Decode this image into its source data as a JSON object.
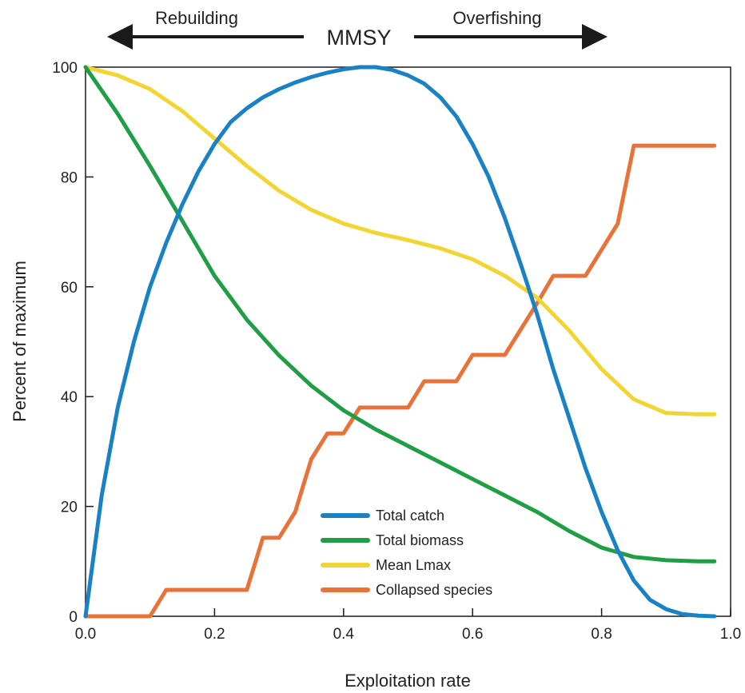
{
  "chart_data": {
    "type": "line",
    "title": "MMSY",
    "xlabel": "Exploitation rate",
    "ylabel": "Percent of maximum",
    "xlim": [
      0.0,
      1.0
    ],
    "ylim": [
      0,
      100
    ],
    "x_ticks": [
      "0.0",
      "0.2",
      "0.4",
      "0.6",
      "0.8",
      "1.0"
    ],
    "y_ticks": [
      "0",
      "20",
      "40",
      "60",
      "80",
      "100"
    ],
    "grid": false,
    "legend_position": "bottom-center",
    "annotations": {
      "left_arrow_label": "Rebuilding",
      "right_arrow_label": "Overfishing"
    },
    "series": [
      {
        "name": "Total catch",
        "color": "#1a82c4",
        "points": [
          [
            0.0,
            0
          ],
          [
            0.025,
            22
          ],
          [
            0.05,
            38
          ],
          [
            0.075,
            50
          ],
          [
            0.1,
            60
          ],
          [
            0.125,
            68
          ],
          [
            0.15,
            75
          ],
          [
            0.175,
            81
          ],
          [
            0.2,
            86
          ],
          [
            0.225,
            90
          ],
          [
            0.25,
            92.5
          ],
          [
            0.275,
            94.5
          ],
          [
            0.3,
            96
          ],
          [
            0.325,
            97.2
          ],
          [
            0.35,
            98.2
          ],
          [
            0.375,
            99
          ],
          [
            0.4,
            99.6
          ],
          [
            0.425,
            100
          ],
          [
            0.45,
            100
          ],
          [
            0.475,
            99.5
          ],
          [
            0.5,
            98.5
          ],
          [
            0.525,
            97
          ],
          [
            0.55,
            94.5
          ],
          [
            0.575,
            91
          ],
          [
            0.6,
            86
          ],
          [
            0.625,
            80
          ],
          [
            0.65,
            72.5
          ],
          [
            0.675,
            64
          ],
          [
            0.7,
            55
          ],
          [
            0.725,
            45
          ],
          [
            0.75,
            36
          ],
          [
            0.775,
            27
          ],
          [
            0.8,
            19
          ],
          [
            0.825,
            12
          ],
          [
            0.85,
            6.5
          ],
          [
            0.875,
            3
          ],
          [
            0.9,
            1.3
          ],
          [
            0.925,
            0.4
          ],
          [
            0.95,
            0.1
          ],
          [
            0.975,
            0
          ]
        ]
      },
      {
        "name": "Total biomass",
        "color": "#1f9e45",
        "points": [
          [
            0.0,
            100
          ],
          [
            0.05,
            91.5
          ],
          [
            0.1,
            82
          ],
          [
            0.15,
            72
          ],
          [
            0.2,
            62
          ],
          [
            0.25,
            54
          ],
          [
            0.3,
            47.5
          ],
          [
            0.35,
            42
          ],
          [
            0.4,
            37.5
          ],
          [
            0.45,
            34
          ],
          [
            0.5,
            31
          ],
          [
            0.55,
            28
          ],
          [
            0.6,
            25
          ],
          [
            0.65,
            22
          ],
          [
            0.7,
            19
          ],
          [
            0.75,
            15.5
          ],
          [
            0.8,
            12.5
          ],
          [
            0.85,
            10.8
          ],
          [
            0.9,
            10.2
          ],
          [
            0.95,
            10
          ],
          [
            0.975,
            10
          ]
        ]
      },
      {
        "name": "Mean Lmax",
        "color": "#f1d534",
        "points": [
          [
            0.0,
            100
          ],
          [
            0.05,
            98.5
          ],
          [
            0.1,
            96
          ],
          [
            0.15,
            92
          ],
          [
            0.2,
            87
          ],
          [
            0.25,
            82
          ],
          [
            0.3,
            77.5
          ],
          [
            0.35,
            74
          ],
          [
            0.4,
            71.5
          ],
          [
            0.45,
            69.8
          ],
          [
            0.5,
            68.5
          ],
          [
            0.55,
            67
          ],
          [
            0.6,
            65
          ],
          [
            0.65,
            62
          ],
          [
            0.7,
            58
          ],
          [
            0.75,
            52
          ],
          [
            0.8,
            45
          ],
          [
            0.85,
            39.5
          ],
          [
            0.9,
            37
          ],
          [
            0.95,
            36.8
          ],
          [
            0.975,
            36.8
          ]
        ]
      },
      {
        "name": "Collapsed species",
        "color": "#e8733a",
        "points": [
          [
            0.0,
            0
          ],
          [
            0.1,
            0
          ],
          [
            0.125,
            4.8
          ],
          [
            0.25,
            4.8
          ],
          [
            0.275,
            14.3
          ],
          [
            0.3,
            14.3
          ],
          [
            0.325,
            19
          ],
          [
            0.35,
            28.6
          ],
          [
            0.375,
            33.3
          ],
          [
            0.4,
            33.3
          ],
          [
            0.425,
            38
          ],
          [
            0.5,
            38
          ],
          [
            0.525,
            42.8
          ],
          [
            0.575,
            42.8
          ],
          [
            0.6,
            47.6
          ],
          [
            0.65,
            47.6
          ],
          [
            0.7,
            57
          ],
          [
            0.725,
            62
          ],
          [
            0.775,
            62
          ],
          [
            0.825,
            71.5
          ],
          [
            0.85,
            85.7
          ],
          [
            0.975,
            85.7
          ]
        ]
      }
    ]
  }
}
